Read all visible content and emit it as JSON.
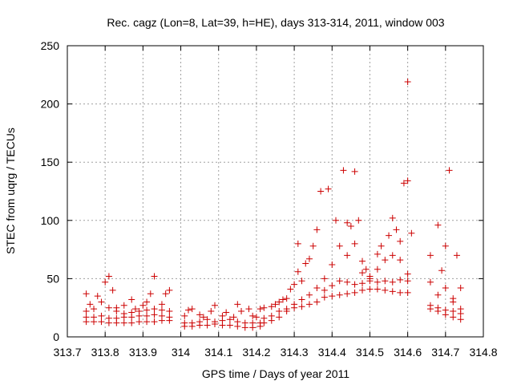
{
  "chart_data": {
    "type": "scatter",
    "title": "Rec. cagz (Lon=8, Lat=39, h=HE), days 313-314, 2011, window 003",
    "xlabel": "GPS time / Days of year 2011",
    "ylabel": "STEC from uqrg / TECUs",
    "xlim": [
      313.7,
      314.8
    ],
    "ylim": [
      0,
      250
    ],
    "xticks": [
      "313.7",
      "313.8",
      "313.9",
      "314",
      "314.1",
      "314.2",
      "314.3",
      "314.4",
      "314.5",
      "314.6",
      "314.7",
      "314.8"
    ],
    "yticks": [
      "0",
      "50",
      "100",
      "150",
      "200",
      "250"
    ],
    "grid": true,
    "legend": "none",
    "marker": "+",
    "color": "#cc0000",
    "series": [
      {
        "points": [
          [
            313.75,
            37
          ],
          [
            313.76,
            28
          ],
          [
            313.78,
            35
          ],
          [
            313.8,
            47
          ],
          [
            313.81,
            52
          ],
          [
            313.82,
            40
          ],
          [
            313.83,
            25
          ],
          [
            313.85,
            27
          ],
          [
            313.87,
            32
          ],
          [
            313.88,
            24
          ],
          [
            313.9,
            27
          ],
          [
            313.91,
            30
          ],
          [
            313.92,
            37
          ],
          [
            313.93,
            52
          ],
          [
            313.95,
            28
          ],
          [
            313.96,
            37
          ],
          [
            313.97,
            40
          ],
          [
            313.75,
            22
          ],
          [
            313.77,
            24
          ],
          [
            313.79,
            30
          ],
          [
            313.81,
            25
          ],
          [
            313.83,
            22
          ],
          [
            313.85,
            20
          ],
          [
            313.87,
            21
          ],
          [
            313.89,
            22
          ],
          [
            313.91,
            23
          ],
          [
            313.93,
            24
          ],
          [
            313.95,
            23
          ],
          [
            313.97,
            22
          ],
          [
            313.75,
            17
          ],
          [
            313.77,
            17
          ],
          [
            313.79,
            18
          ],
          [
            313.81,
            16
          ],
          [
            313.83,
            16
          ],
          [
            313.85,
            17
          ],
          [
            313.87,
            17
          ],
          [
            313.89,
            18
          ],
          [
            313.91,
            18
          ],
          [
            313.93,
            19
          ],
          [
            313.95,
            18
          ],
          [
            313.97,
            17
          ],
          [
            313.75,
            13
          ],
          [
            313.77,
            13
          ],
          [
            313.79,
            13
          ],
          [
            313.81,
            12
          ],
          [
            313.83,
            12
          ],
          [
            313.85,
            12
          ],
          [
            313.87,
            12
          ],
          [
            313.89,
            13
          ],
          [
            313.91,
            13
          ],
          [
            313.93,
            13
          ],
          [
            313.95,
            14
          ],
          [
            313.97,
            14
          ],
          [
            314.01,
            18
          ],
          [
            314.02,
            23
          ],
          [
            314.03,
            24
          ],
          [
            314.05,
            19
          ],
          [
            314.06,
            17
          ],
          [
            314.08,
            22
          ],
          [
            314.09,
            27
          ],
          [
            314.11,
            18
          ],
          [
            314.12,
            21
          ],
          [
            314.14,
            17
          ],
          [
            314.15,
            28
          ],
          [
            314.16,
            22
          ],
          [
            314.18,
            24
          ],
          [
            314.19,
            18
          ],
          [
            314.2,
            17
          ],
          [
            314.01,
            12
          ],
          [
            314.03,
            12
          ],
          [
            314.05,
            13
          ],
          [
            314.07,
            15
          ],
          [
            314.09,
            13
          ],
          [
            314.11,
            14
          ],
          [
            314.13,
            15
          ],
          [
            314.15,
            13
          ],
          [
            314.17,
            12
          ],
          [
            314.19,
            12
          ],
          [
            314.21,
            12
          ],
          [
            314.01,
            9
          ],
          [
            314.03,
            9
          ],
          [
            314.05,
            10
          ],
          [
            314.07,
            10
          ],
          [
            314.09,
            11
          ],
          [
            314.11,
            10
          ],
          [
            314.13,
            10
          ],
          [
            314.15,
            9
          ],
          [
            314.17,
            8
          ],
          [
            314.19,
            8
          ],
          [
            314.21,
            9
          ],
          [
            314.21,
            24
          ],
          [
            314.22,
            25
          ],
          [
            314.24,
            26
          ],
          [
            314.25,
            28
          ],
          [
            314.26,
            30
          ],
          [
            314.27,
            32
          ],
          [
            314.28,
            33
          ],
          [
            314.29,
            41
          ],
          [
            314.3,
            45
          ],
          [
            314.31,
            56
          ],
          [
            314.31,
            80
          ],
          [
            314.32,
            48
          ],
          [
            314.33,
            63
          ],
          [
            314.34,
            67
          ],
          [
            314.35,
            78
          ],
          [
            314.36,
            92
          ],
          [
            314.22,
            16
          ],
          [
            314.24,
            18
          ],
          [
            314.26,
            22
          ],
          [
            314.28,
            24
          ],
          [
            314.3,
            28
          ],
          [
            314.32,
            32
          ],
          [
            314.34,
            36
          ],
          [
            314.36,
            42
          ],
          [
            314.22,
            12
          ],
          [
            314.24,
            14
          ],
          [
            314.26,
            17
          ],
          [
            314.28,
            22
          ],
          [
            314.3,
            25
          ],
          [
            314.32,
            26
          ],
          [
            314.34,
            28
          ],
          [
            314.36,
            30
          ],
          [
            314.37,
            125
          ],
          [
            314.39,
            127
          ],
          [
            314.41,
            100
          ],
          [
            314.43,
            143
          ],
          [
            314.44,
            98
          ],
          [
            314.45,
            95
          ],
          [
            314.46,
            142
          ],
          [
            314.47,
            100
          ],
          [
            314.48,
            65
          ],
          [
            314.49,
            58
          ],
          [
            314.5,
            50
          ],
          [
            314.52,
            71
          ],
          [
            314.53,
            78
          ],
          [
            314.55,
            87
          ],
          [
            314.56,
            102
          ],
          [
            314.57,
            92
          ],
          [
            314.58,
            82
          ],
          [
            314.59,
            132
          ],
          [
            314.6,
            134
          ],
          [
            314.61,
            89
          ],
          [
            314.6,
            219
          ],
          [
            314.38,
            50
          ],
          [
            314.4,
            62
          ],
          [
            314.42,
            78
          ],
          [
            314.44,
            70
          ],
          [
            314.46,
            80
          ],
          [
            314.48,
            55
          ],
          [
            314.5,
            52
          ],
          [
            314.52,
            58
          ],
          [
            314.54,
            66
          ],
          [
            314.56,
            70
          ],
          [
            314.58,
            66
          ],
          [
            314.6,
            54
          ],
          [
            314.38,
            40
          ],
          [
            314.4,
            44
          ],
          [
            314.42,
            48
          ],
          [
            314.44,
            47
          ],
          [
            314.46,
            45
          ],
          [
            314.48,
            46
          ],
          [
            314.5,
            48
          ],
          [
            314.52,
            47
          ],
          [
            314.54,
            48
          ],
          [
            314.56,
            47
          ],
          [
            314.58,
            49
          ],
          [
            314.6,
            48
          ],
          [
            314.38,
            34
          ],
          [
            314.4,
            35
          ],
          [
            314.42,
            36
          ],
          [
            314.44,
            37
          ],
          [
            314.46,
            38
          ],
          [
            314.48,
            40
          ],
          [
            314.5,
            41
          ],
          [
            314.52,
            41
          ],
          [
            314.54,
            40
          ],
          [
            314.56,
            39
          ],
          [
            314.58,
            38
          ],
          [
            314.6,
            38
          ],
          [
            314.66,
            70
          ],
          [
            314.68,
            96
          ],
          [
            314.69,
            57
          ],
          [
            314.7,
            78
          ],
          [
            314.71,
            143
          ],
          [
            314.72,
            33
          ],
          [
            314.73,
            70
          ],
          [
            314.74,
            42
          ],
          [
            314.66,
            47
          ],
          [
            314.68,
            36
          ],
          [
            314.7,
            42
          ],
          [
            314.72,
            30
          ],
          [
            314.74,
            24
          ],
          [
            314.66,
            27
          ],
          [
            314.68,
            25
          ],
          [
            314.7,
            23
          ],
          [
            314.72,
            22
          ],
          [
            314.74,
            20
          ],
          [
            314.66,
            24
          ],
          [
            314.68,
            22
          ],
          [
            314.7,
            19
          ],
          [
            314.72,
            17
          ],
          [
            314.74,
            15
          ]
        ]
      }
    ]
  }
}
